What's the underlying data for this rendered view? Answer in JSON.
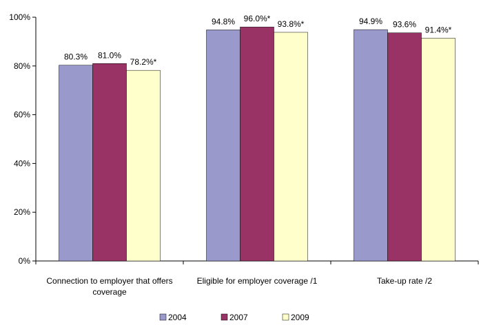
{
  "chart_data": {
    "type": "bar",
    "categories": [
      [
        "Connection to employer that offers",
        "coverage"
      ],
      [
        "Eligible for employer coverage /1"
      ],
      [
        "Take-up rate /2"
      ]
    ],
    "series": [
      {
        "name": "2004",
        "color": "#9999CC",
        "values": [
          80.3,
          94.8,
          94.9
        ],
        "labels": [
          "80.3%",
          "94.8%",
          "94.9%"
        ]
      },
      {
        "name": "2007",
        "color": "#993366",
        "values": [
          81.0,
          96.0,
          93.6
        ],
        "labels": [
          "81.0%",
          "96.0%*",
          "93.6%"
        ]
      },
      {
        "name": "2009",
        "color": "#FFFFCC",
        "values": [
          78.2,
          93.8,
          91.4
        ],
        "labels": [
          "78.2%*",
          "93.8%*",
          "91.4%*"
        ]
      }
    ],
    "ylim": [
      0,
      100
    ],
    "yticks": [
      0,
      20,
      40,
      60,
      80,
      100
    ],
    "ytick_labels": [
      "0%",
      "20%",
      "40%",
      "60%",
      "80%",
      "100%"
    ],
    "grid": false,
    "legend": "bottom"
  }
}
